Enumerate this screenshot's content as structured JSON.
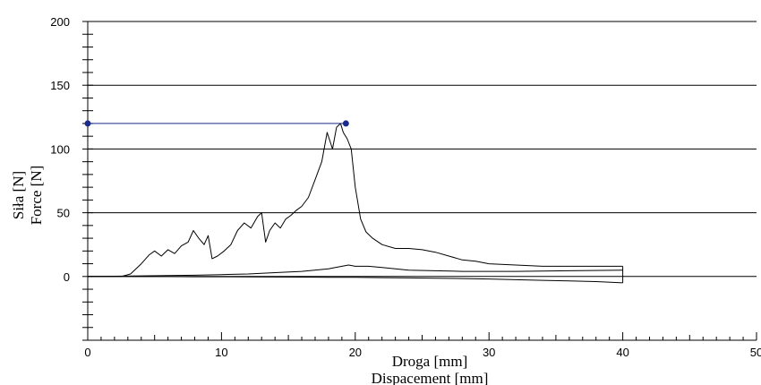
{
  "chart_data": {
    "type": "line",
    "title": "",
    "xlabel": "Droga [mm]",
    "xlabel_secondary": "Dispacement [mm]",
    "ylabel": "Siła [N]",
    "ylabel_secondary": "Force [N]",
    "xlim": [
      0,
      50
    ],
    "ylim": [
      -50,
      200
    ],
    "x_ticks": [
      0,
      10,
      20,
      30,
      40,
      50
    ],
    "x_tick_labels": [
      "0",
      "10",
      "20",
      "30",
      "40",
      "50"
    ],
    "y_ticks": [
      0,
      50,
      100,
      150,
      200
    ],
    "y_tick_labels": [
      "0",
      "50",
      "100",
      "150",
      "200"
    ],
    "grid": "horizontal",
    "series": [
      {
        "role": "loading",
        "color": "#000000",
        "x": [
          0,
          2.5,
          3.2,
          4,
          4.6,
          5,
          5.5,
          6,
          6.5,
          7,
          7.5,
          7.9,
          8.3,
          8.7,
          9,
          9.3,
          9.7,
          10.2,
          10.7,
          11.2,
          11.7,
          12.2,
          12.7,
          13,
          13.3,
          13.6,
          14,
          14.4,
          14.8,
          15.2,
          15.6,
          16,
          16.5,
          17,
          17.5,
          17.9,
          18.3,
          18.6,
          18.9,
          19.1,
          19.4,
          19.7,
          20,
          20.4,
          20.8,
          21.3,
          22,
          23,
          24,
          25,
          26,
          27,
          28,
          29,
          30,
          32,
          34,
          36,
          38,
          40
        ],
        "y": [
          0,
          0,
          2,
          10,
          17,
          20,
          16,
          21,
          18,
          24,
          27,
          36,
          30,
          25,
          32,
          14,
          16,
          20,
          25,
          36,
          42,
          38,
          47,
          50,
          27,
          36,
          42,
          38,
          45,
          48,
          52,
          55,
          62,
          76,
          90,
          113,
          100,
          117,
          120,
          113,
          108,
          100,
          70,
          45,
          35,
          30,
          25,
          22,
          22,
          21,
          19,
          16,
          13,
          12,
          10,
          9,
          8,
          8,
          8,
          8
        ]
      },
      {
        "role": "return",
        "color": "#000000",
        "x": [
          40,
          36,
          32,
          28,
          24,
          22,
          21,
          20,
          19.5,
          19,
          18,
          16,
          14,
          12,
          10,
          8,
          6,
          4,
          2,
          0
        ],
        "y": [
          5,
          4.5,
          4,
          4,
          5,
          7,
          8,
          8,
          9,
          8,
          6,
          4,
          3,
          2,
          1.5,
          1,
          0.8,
          0.5,
          0.2,
          0
        ]
      },
      {
        "role": "unloading",
        "color": "#000000",
        "x": [
          40,
          38,
          36,
          34,
          32,
          30,
          28,
          26,
          24,
          22,
          20,
          18,
          16,
          14,
          12,
          10,
          8,
          6,
          4,
          2,
          0
        ],
        "y": [
          -5,
          -4,
          -3.5,
          -3,
          -2.5,
          -2,
          -1.6,
          -1.3,
          -1.1,
          -0.9,
          -0.7,
          -0.6,
          -0.5,
          -0.4,
          -0.3,
          -0.2,
          -0.2,
          -0.1,
          -0.1,
          0,
          0
        ]
      },
      {
        "role": "peak-marker",
        "color": "#1a2b8c",
        "x": [
          0,
          19.3
        ],
        "y": [
          120,
          120
        ]
      }
    ]
  }
}
